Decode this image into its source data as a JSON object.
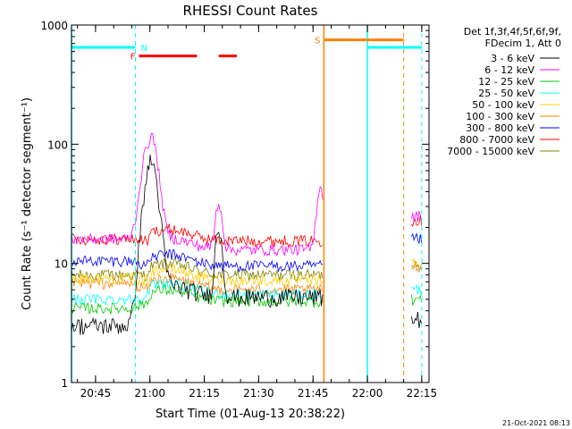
{
  "chart_data": {
    "type": "line",
    "title": "RHESSI Count Rates",
    "xlabel": "Start Time (01-Aug-13 20:38:22)",
    "ylabel": "Count Rate (s⁻¹ detector segment⁻¹)",
    "footer": "21-Oct-2021 08:13",
    "y_scale": "log",
    "ylim": [
      1,
      1000
    ],
    "xlim": [
      "20:38:22",
      "22:17:00"
    ],
    "x_ticks": [
      "20:45",
      "21:00",
      "21:15",
      "21:30",
      "21:45",
      "22:00",
      "22:15"
    ],
    "y_ticks": [
      "1",
      "10",
      "100",
      "1000"
    ],
    "legend_header": [
      "Det 1f,3f,4f,5f,6f,9f,",
      "FDecim 1, Att 0"
    ],
    "legend_placement": "right",
    "series": [
      {
        "name": "3 - 6 keV",
        "color": "#000000",
        "base_before": 3.0,
        "base_after": 5.2,
        "base_late": 3.4
      },
      {
        "name": "6 - 12 keV",
        "color": "#ff00ff",
        "base_before": 16.0,
        "base_after": 13.0,
        "base_late": 25.0
      },
      {
        "name": "12 - 25 keV",
        "color": "#00cc00",
        "base_before": 4.2,
        "base_after": 4.8,
        "base_late": 5.0
      },
      {
        "name": "25 - 50 keV",
        "color": "#00ffff",
        "base_before": 5.0,
        "base_after": 5.5,
        "base_late": 6.0
      },
      {
        "name": "50 - 100 keV",
        "color": "#ffcc00",
        "base_before": 7.5,
        "base_after": 7.2,
        "base_late": 10.0
      },
      {
        "name": "100 - 300 keV",
        "color": "#ff8000",
        "base_before": 6.8,
        "base_after": 6.0,
        "base_late": 9.5
      },
      {
        "name": "300 - 800 keV",
        "color": "#0000ff",
        "base_before": 10.5,
        "base_after": 9.5,
        "base_late": 16.0
      },
      {
        "name": "800 - 7000 keV",
        "color": "#ff0000",
        "base_before": 16.0,
        "base_after": 15.5,
        "base_late": 23.0
      },
      {
        "name": "7000 - 15000 keV",
        "color": "#808000",
        "base_before": 8.0,
        "base_after": 8.0,
        "base_late": 10.0
      }
    ],
    "peaks": [
      {
        "series": "6 - 12 keV",
        "time": "21:00",
        "value": 120
      },
      {
        "series": "3 - 6 keV",
        "time": "21:00",
        "value": 75
      },
      {
        "series": "6 - 12 keV",
        "time": "21:19",
        "value": 32
      },
      {
        "series": "3 - 6 keV",
        "time": "21:19",
        "value": 20
      },
      {
        "series": "6 - 12 keV",
        "time": "21:47",
        "value": 45
      }
    ],
    "data_gap": [
      "21:48",
      "22:12"
    ],
    "flags": [
      {
        "label": "N",
        "color": "#00ffff",
        "value": 650,
        "spans": [
          [
            "20:38:22",
            "20:56"
          ],
          [
            "22:00",
            "22:15"
          ]
        ]
      },
      {
        "label": "F",
        "color": "#ff0000",
        "value": 550,
        "spans": [
          [
            "20:57",
            "21:13"
          ],
          [
            "21:19",
            "21:24"
          ]
        ]
      },
      {
        "label": "S",
        "color": "#ff8000",
        "value": 750,
        "spans": [
          [
            "21:48",
            "22:10"
          ]
        ]
      }
    ],
    "vertical_markers": [
      {
        "time": "20:38:22",
        "color": "#00ffff",
        "style": "solid"
      },
      {
        "time": "20:56",
        "color": "#00ffff",
        "style": "dashed"
      },
      {
        "time": "21:48",
        "color": "#ff8000",
        "style": "solid"
      },
      {
        "time": "22:00",
        "color": "#00ffff",
        "style": "solid"
      },
      {
        "time": "22:10",
        "color": "#ff8000",
        "style": "dashed"
      },
      {
        "time": "22:15",
        "color": "#00ffff",
        "style": "dashed"
      }
    ]
  }
}
